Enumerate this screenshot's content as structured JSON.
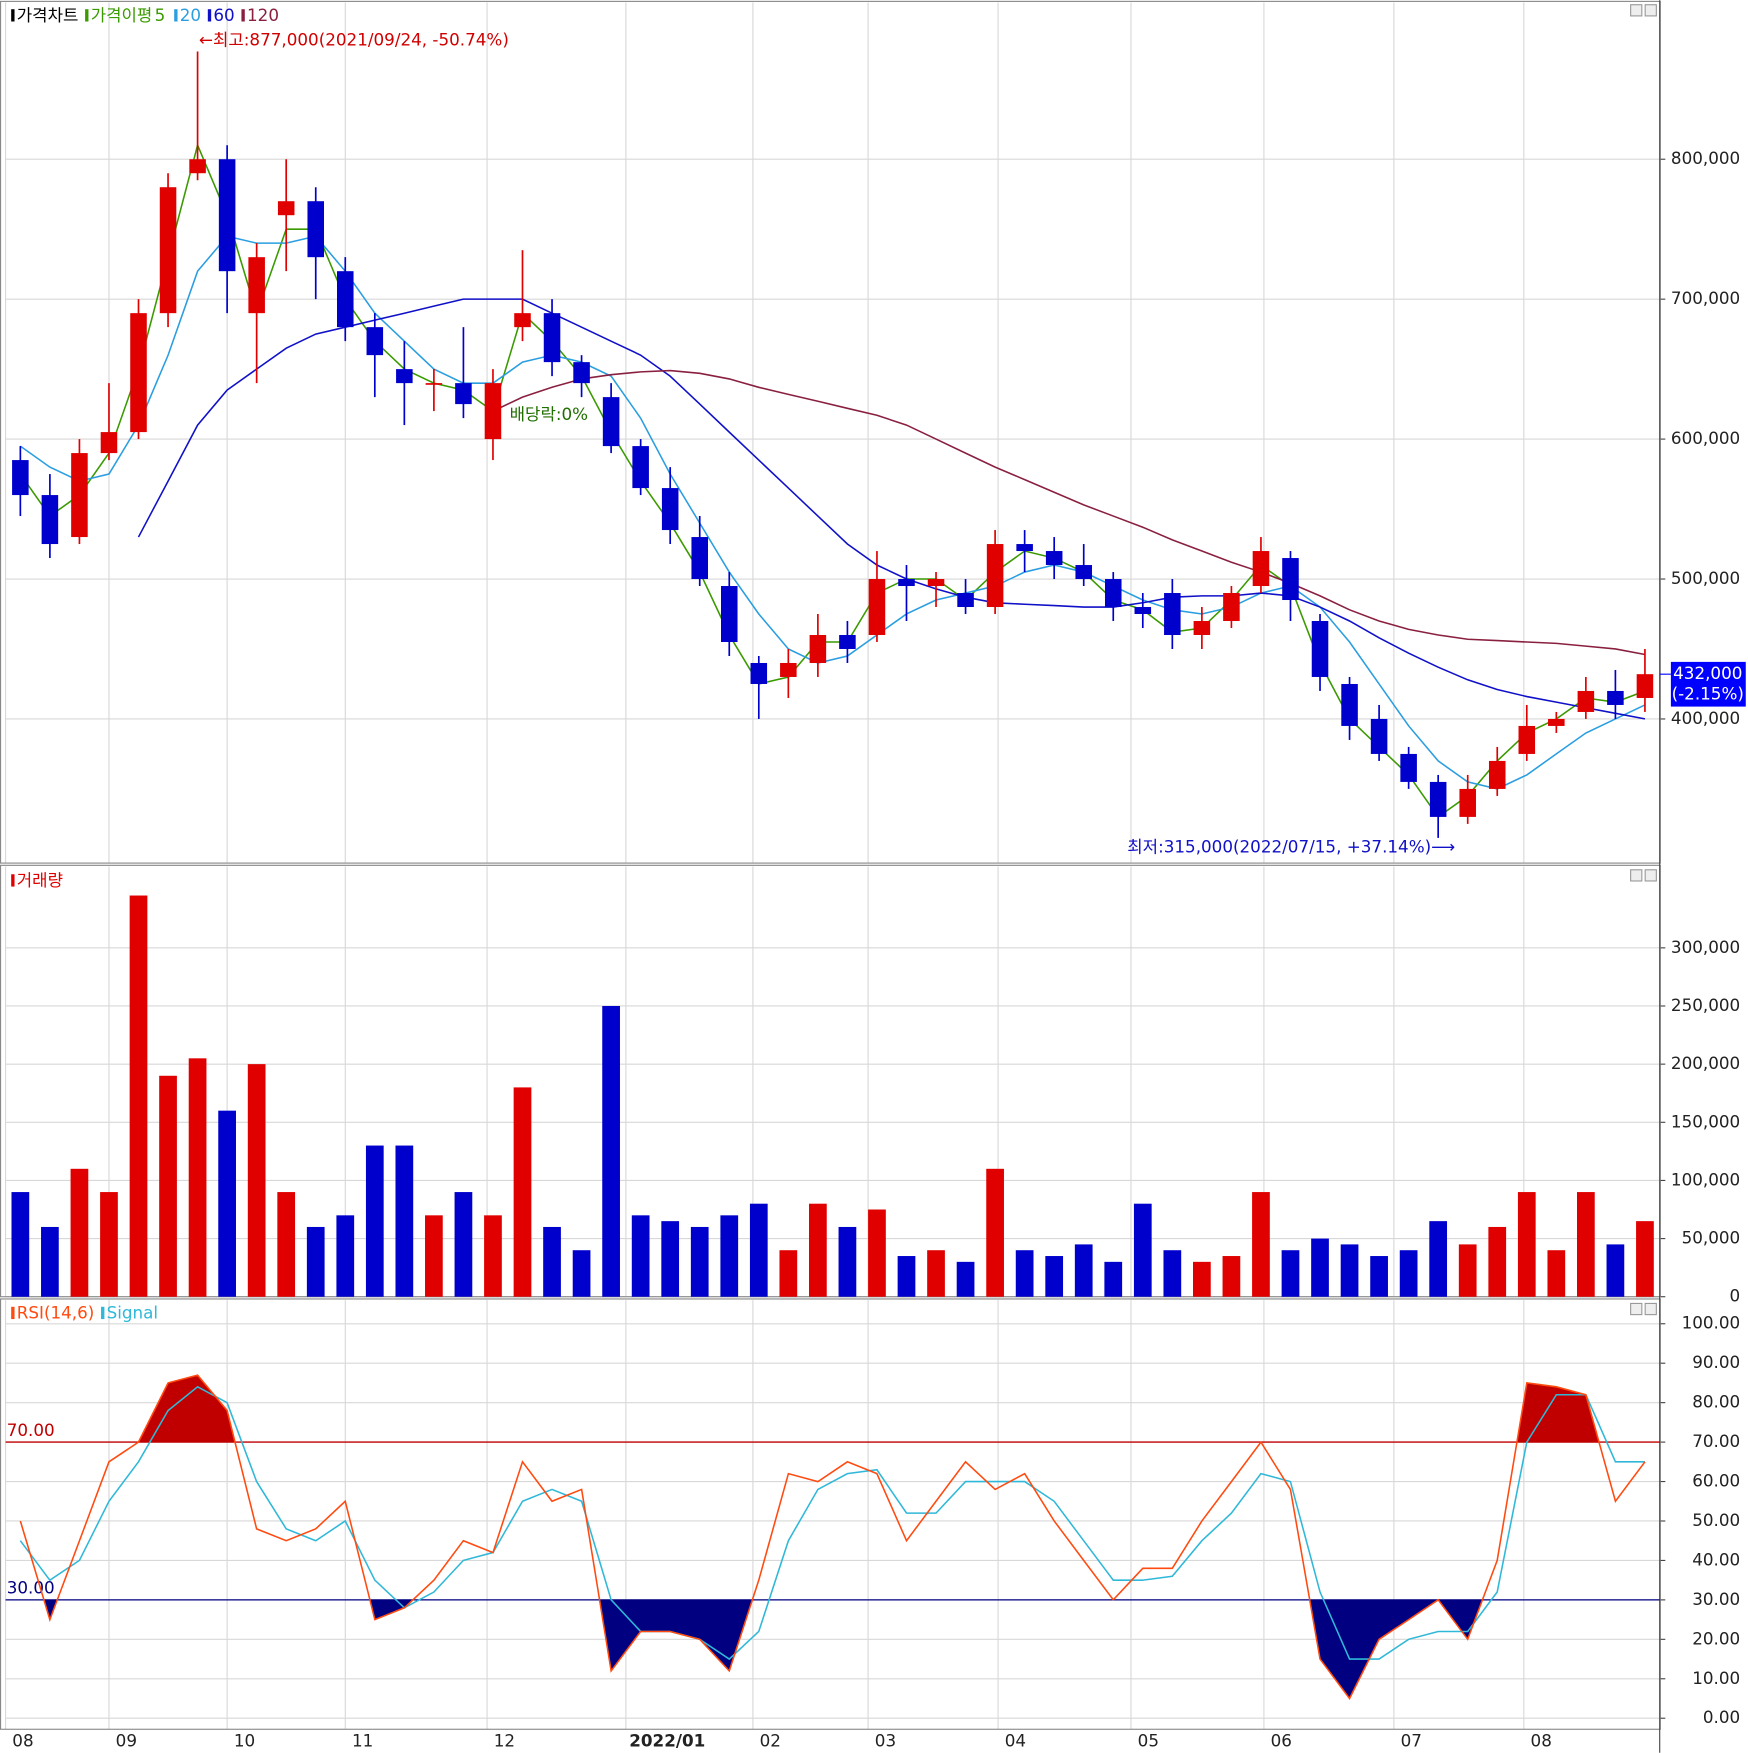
{
  "chart_data": [
    {
      "type": "candlestick",
      "title": "가격차트",
      "ma_label": "가격이평",
      "xlim": [
        0,
        56
      ],
      "xticks": [
        {
          "value": 0,
          "label": "08"
        },
        {
          "value": 3.5,
          "label": "09"
        },
        {
          "value": 7.5,
          "label": "10"
        },
        {
          "value": 11.5,
          "label": "11"
        },
        {
          "value": 16.3,
          "label": "12"
        },
        {
          "value": 21,
          "label": "2022/01"
        },
        {
          "value": 25.3,
          "label": "02"
        },
        {
          "value": 29.2,
          "label": "03"
        },
        {
          "value": 33.6,
          "label": "04"
        },
        {
          "value": 38.1,
          "label": "05"
        },
        {
          "value": 42.6,
          "label": "06"
        },
        {
          "value": 47,
          "label": "07"
        },
        {
          "value": 51.4,
          "label": "08"
        }
      ],
      "ylim": [
        297000,
        912000
      ],
      "yticks": [
        {
          "value": 400000,
          "label": "400,000"
        },
        {
          "value": 500000,
          "label": "500,000"
        },
        {
          "value": 600000,
          "label": "600,000"
        },
        {
          "value": 700000,
          "label": "700,000"
        },
        {
          "value": 800000,
          "label": "800,000"
        }
      ],
      "up_color": "#e00000",
      "down_color": "#0000cc",
      "grid": true,
      "open": [
        585000,
        560000,
        530000,
        590000,
        605000,
        690000,
        790000,
        800000,
        690000,
        760000,
        770000,
        720000,
        680000,
        650000,
        640000,
        640000,
        600000,
        680000,
        690000,
        655000,
        630000,
        595000,
        565000,
        530000,
        495000,
        440000,
        430000,
        440000,
        460000,
        460000,
        500000,
        495000,
        490000,
        480000,
        525000,
        520000,
        510000,
        500000,
        480000,
        490000,
        460000,
        470000,
        495000,
        515000,
        470000,
        425000,
        400000,
        375000,
        355000,
        330000,
        350000,
        375000,
        395000,
        405000,
        420000,
        415000
      ],
      "high": [
        595000,
        575000,
        600000,
        640000,
        700000,
        790000,
        877000,
        810000,
        740000,
        800000,
        780000,
        730000,
        690000,
        670000,
        650000,
        680000,
        650000,
        735000,
        700000,
        660000,
        640000,
        600000,
        580000,
        545000,
        505000,
        445000,
        450000,
        475000,
        470000,
        520000,
        510000,
        505000,
        500000,
        535000,
        535000,
        530000,
        525000,
        505000,
        490000,
        500000,
        480000,
        495000,
        530000,
        520000,
        475000,
        430000,
        410000,
        380000,
        360000,
        360000,
        380000,
        410000,
        405000,
        430000,
        435000,
        450000
      ],
      "low": [
        545000,
        515000,
        525000,
        585000,
        600000,
        680000,
        785000,
        690000,
        640000,
        720000,
        700000,
        670000,
        630000,
        610000,
        620000,
        615000,
        585000,
        670000,
        645000,
        630000,
        590000,
        560000,
        525000,
        495000,
        445000,
        400000,
        415000,
        430000,
        440000,
        455000,
        470000,
        480000,
        475000,
        475000,
        505000,
        500000,
        495000,
        470000,
        465000,
        450000,
        450000,
        465000,
        490000,
        470000,
        420000,
        385000,
        370000,
        350000,
        315000,
        325000,
        345000,
        370000,
        390000,
        400000,
        400000,
        405000
      ],
      "close": [
        560000,
        525000,
        590000,
        605000,
        690000,
        780000,
        800000,
        720000,
        730000,
        770000,
        730000,
        680000,
        660000,
        640000,
        640000,
        625000,
        640000,
        690000,
        655000,
        640000,
        595000,
        565000,
        535000,
        500000,
        455000,
        425000,
        440000,
        460000,
        450000,
        500000,
        495000,
        500000,
        480000,
        525000,
        520000,
        510000,
        500000,
        480000,
        475000,
        460000,
        470000,
        490000,
        520000,
        485000,
        430000,
        395000,
        375000,
        355000,
        330000,
        350000,
        370000,
        395000,
        400000,
        420000,
        410000,
        432000
      ],
      "series": [
        {
          "name": "5",
          "color": "#3a9a00",
          "values": [
            575000,
            545000,
            560000,
            590000,
            650000,
            730000,
            810000,
            760000,
            690000,
            750000,
            750000,
            700000,
            670000,
            650000,
            640000,
            635000,
            620000,
            690000,
            670000,
            645000,
            605000,
            570000,
            540000,
            505000,
            460000,
            425000,
            430000,
            455000,
            455000,
            490000,
            500000,
            500000,
            485000,
            505000,
            520000,
            515000,
            505000,
            485000,
            478000,
            462000,
            465000,
            485000,
            510000,
            495000,
            440000,
            400000,
            380000,
            360000,
            330000,
            345000,
            370000,
            390000,
            400000,
            415000,
            412000,
            420000
          ]
        },
        {
          "name": "20",
          "color": "#2a9ee0",
          "values": [
            595000,
            580000,
            570000,
            575000,
            610000,
            660000,
            720000,
            745000,
            740000,
            740000,
            745000,
            720000,
            690000,
            670000,
            650000,
            640000,
            640000,
            655000,
            660000,
            655000,
            645000,
            615000,
            575000,
            540000,
            505000,
            475000,
            450000,
            440000,
            445000,
            460000,
            475000,
            485000,
            490000,
            495000,
            505000,
            510000,
            505000,
            495000,
            485000,
            478000,
            475000,
            480000,
            490000,
            495000,
            480000,
            455000,
            425000,
            395000,
            370000,
            355000,
            350000,
            360000,
            375000,
            390000,
            400000,
            410000
          ]
        },
        {
          "name": "60",
          "color": "#1010c8",
          "values": [
            null,
            null,
            null,
            null,
            530000,
            570000,
            610000,
            635000,
            650000,
            665000,
            675000,
            680000,
            685000,
            690000,
            695000,
            700000,
            700000,
            700000,
            690000,
            680000,
            670000,
            660000,
            645000,
            625000,
            605000,
            585000,
            565000,
            545000,
            525000,
            510000,
            500000,
            493000,
            487000,
            483000,
            482000,
            481000,
            480000,
            480000,
            483000,
            487000,
            488000,
            488000,
            490000,
            488000,
            480000,
            470000,
            458000,
            447000,
            437000,
            428000,
            421000,
            416000,
            412000,
            408000,
            404000,
            400000
          ]
        },
        {
          "name": "120",
          "color": "#8a2040",
          "values": [
            null,
            null,
            null,
            null,
            null,
            null,
            null,
            null,
            null,
            null,
            null,
            null,
            null,
            null,
            null,
            null,
            620000,
            630000,
            637000,
            643000,
            646000,
            648000,
            649000,
            647000,
            643000,
            637000,
            632000,
            627000,
            622000,
            617000,
            610000,
            600000,
            590000,
            580000,
            571000,
            562000,
            553000,
            545000,
            537000,
            528000,
            520000,
            512000,
            505000,
            497000,
            488000,
            478000,
            470000,
            464000,
            460000,
            457000,
            456000,
            455000,
            454000,
            452000,
            450000,
            446000
          ]
        }
      ],
      "high_note": "←최고:877,000(2021/09/24, -50.74%)",
      "low_note": "최저:315,000(2022/07/15, +37.14%)⟶",
      "dividend_note": "배당락:0%",
      "last": {
        "value": 432000,
        "label": "432,000",
        "change": "(-2.15%)"
      }
    },
    {
      "type": "bar",
      "title": "거래량",
      "ylim": [
        0,
        370000
      ],
      "yticks": [
        0,
        {
          "value": 50000,
          "label": "50,000"
        },
        {
          "value": 100000,
          "label": "100,000"
        },
        {
          "value": 150000,
          "label": "150,000"
        },
        {
          "value": 200000,
          "label": "200,000"
        },
        {
          "value": 250000,
          "label": "250,000"
        },
        {
          "value": 300000,
          "label": "300,000"
        }
      ],
      "values": [
        90000,
        60000,
        110000,
        90000,
        345000,
        190000,
        205000,
        160000,
        200000,
        90000,
        60000,
        70000,
        130000,
        130000,
        70000,
        90000,
        70000,
        180000,
        60000,
        40000,
        250000,
        70000,
        65000,
        60000,
        70000,
        80000,
        40000,
        80000,
        60000,
        75000,
        35000,
        40000,
        30000,
        110000,
        40000,
        35000,
        45000,
        30000,
        80000,
        40000,
        30000,
        35000,
        90000,
        40000,
        50000,
        45000,
        35000,
        40000,
        65000,
        45000,
        60000,
        90000,
        40000,
        90000,
        45000,
        65000
      ]
    },
    {
      "type": "line",
      "title": "RSI(14,6)",
      "ylim": [
        -2.8,
        106
      ],
      "yticks": [
        {
          "value": 0,
          "label": "0.00"
        },
        {
          "value": 10,
          "label": "10.00"
        },
        {
          "value": 20,
          "label": "20.00"
        },
        {
          "value": 30,
          "label": "30.00"
        },
        {
          "value": 40,
          "label": "40.00"
        },
        {
          "value": 50,
          "label": "50.00"
        },
        {
          "value": 60,
          "label": "60.00"
        },
        {
          "value": 70,
          "label": "70.00"
        },
        {
          "value": 80,
          "label": "80.00"
        },
        {
          "value": 90,
          "label": "90.00"
        },
        {
          "value": 100,
          "label": "100.00"
        }
      ],
      "levels": [
        {
          "value": 70,
          "label": "70.00",
          "color": "#c00000"
        },
        {
          "value": 30,
          "label": "30.00",
          "color": "#000080"
        }
      ],
      "series": [
        {
          "name": "RSI(14,6)",
          "color": "#ff4a10",
          "values": [
            50,
            25,
            45,
            65,
            70,
            85,
            87,
            78,
            48,
            45,
            48,
            55,
            25,
            28,
            35,
            45,
            42,
            65,
            55,
            58,
            12,
            22,
            22,
            20,
            12,
            35,
            62,
            60,
            65,
            62,
            45,
            55,
            65,
            58,
            62,
            50,
            40,
            30,
            38,
            38,
            50,
            60,
            70,
            58,
            15,
            5,
            20,
            25,
            30,
            20,
            40,
            85,
            84,
            82,
            55,
            65
          ]
        },
        {
          "name": "Signal",
          "color": "#30b8d8",
          "values": [
            45,
            35,
            40,
            55,
            65,
            78,
            84,
            80,
            60,
            48,
            45,
            50,
            35,
            28,
            32,
            40,
            42,
            55,
            58,
            55,
            30,
            22,
            22,
            20,
            15,
            22,
            45,
            58,
            62,
            63,
            52,
            52,
            60,
            60,
            60,
            55,
            45,
            35,
            35,
            36,
            45,
            52,
            62,
            60,
            32,
            15,
            15,
            20,
            22,
            22,
            32,
            70,
            82,
            82,
            65,
            65
          ]
        }
      ]
    }
  ]
}
